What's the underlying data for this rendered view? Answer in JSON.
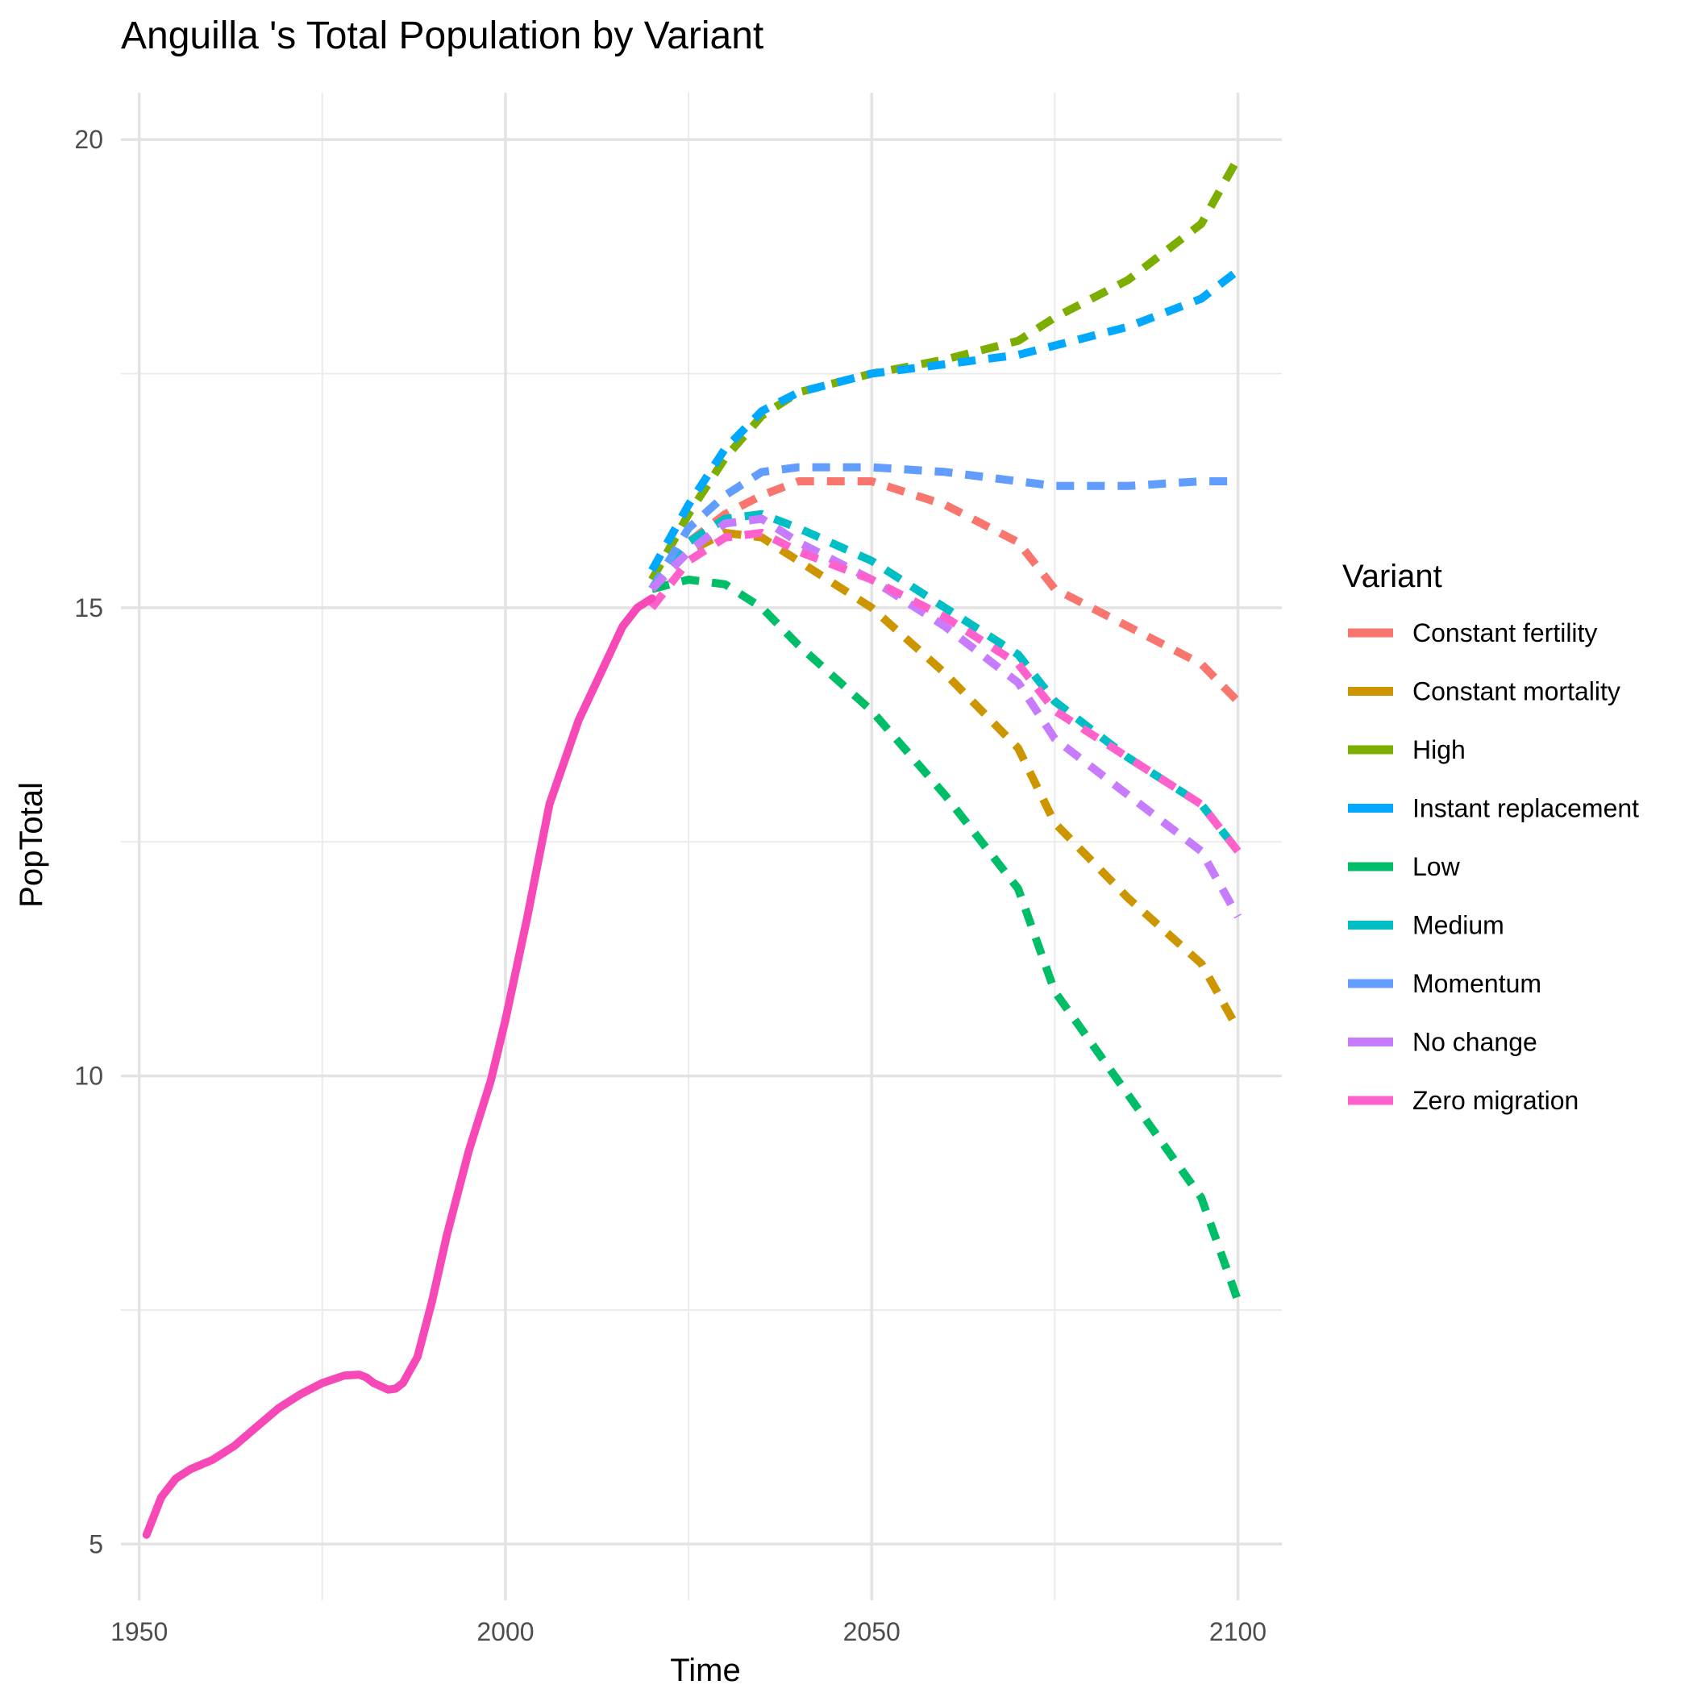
{
  "chart_data": {
    "type": "line",
    "title": "Anguilla 's Total Population by Variant",
    "xlabel": "Time",
    "ylabel": "PopTotal",
    "xlim": [
      1947.5,
      2106
    ],
    "ylim": [
      4.4,
      20.5
    ],
    "x_ticks": [
      1950,
      2000,
      2050,
      2100
    ],
    "y_ticks": [
      5,
      10,
      15,
      20
    ],
    "y_minor_ticks": [
      7.5,
      12.5,
      17.5
    ],
    "x_minor_ticks": [
      1975,
      2025,
      2075
    ],
    "grid": true,
    "legend": {
      "title": "Variant",
      "position": "right"
    },
    "historical": {
      "name": "Zero migration",
      "x": [
        1951,
        1953,
        1955,
        1957,
        1960,
        1963,
        1966,
        1969,
        1972,
        1975,
        1978,
        1980,
        1981,
        1982,
        1984,
        1985,
        1986,
        1988,
        1990,
        1992,
        1995,
        1998,
        2000,
        2003,
        2006,
        2010,
        2013,
        2016,
        2018,
        2020
      ],
      "y": [
        5.1,
        5.5,
        5.7,
        5.8,
        5.9,
        6.05,
        6.25,
        6.45,
        6.6,
        6.72,
        6.8,
        6.81,
        6.78,
        6.72,
        6.65,
        6.66,
        6.72,
        7.0,
        7.6,
        8.3,
        9.2,
        9.95,
        10.6,
        11.7,
        12.9,
        13.8,
        14.3,
        14.8,
        15.0,
        15.1
      ]
    },
    "series": [
      {
        "name": "Constant fertility",
        "color": "#F8766D",
        "values": [
          15.2,
          15.7,
          16.0,
          16.2,
          16.35,
          16.35,
          16.1,
          15.7,
          15.2,
          14.8,
          14.4,
          14.0
        ]
      },
      {
        "name": "Constant mortality",
        "color": "#CD9600",
        "values": [
          15.2,
          15.6,
          15.8,
          15.75,
          15.5,
          15.0,
          14.3,
          13.5,
          12.7,
          11.9,
          11.2,
          10.5
        ]
      },
      {
        "name": "High",
        "color": "#7CAE00",
        "values": [
          15.3,
          16.0,
          16.6,
          17.05,
          17.3,
          17.5,
          17.65,
          17.85,
          18.1,
          18.5,
          19.1,
          19.8
        ]
      },
      {
        "name": "Instant replacement",
        "color": "#00A9FF",
        "values": [
          15.4,
          16.1,
          16.7,
          17.1,
          17.3,
          17.5,
          17.6,
          17.7,
          17.8,
          18.0,
          18.3,
          18.6
        ]
      },
      {
        "name": "Low",
        "color": "#00BE67",
        "values": [
          15.2,
          15.3,
          15.25,
          15.0,
          14.6,
          13.9,
          13.0,
          12.0,
          10.9,
          9.8,
          8.7,
          7.6
        ]
      },
      {
        "name": "Medium",
        "color": "#00BFC4",
        "values": [
          15.2,
          15.7,
          15.95,
          16.0,
          15.85,
          15.5,
          15.0,
          14.5,
          14.0,
          13.4,
          12.9,
          12.4
        ]
      },
      {
        "name": "Momentum",
        "color": "#619CFF",
        "values": [
          15.2,
          15.85,
          16.2,
          16.45,
          16.5,
          16.5,
          16.45,
          16.35,
          16.3,
          16.3,
          16.35,
          16.35
        ]
      },
      {
        "name": "No change",
        "color": "#C77CFF",
        "values": [
          15.2,
          15.6,
          15.9,
          15.95,
          15.7,
          15.3,
          14.8,
          14.2,
          13.6,
          13.0,
          12.4,
          11.7
        ]
      },
      {
        "name": "Zero migration",
        "color": "#FF61CC",
        "values": [
          15.0,
          15.5,
          15.75,
          15.8,
          15.6,
          15.3,
          14.9,
          14.4,
          13.9,
          13.4,
          12.9,
          12.4
        ]
      }
    ],
    "x": [
      2020,
      2025,
      2030,
      2035,
      2040,
      2050,
      2060,
      2070,
      2075,
      2085,
      2095,
      2100
    ]
  }
}
